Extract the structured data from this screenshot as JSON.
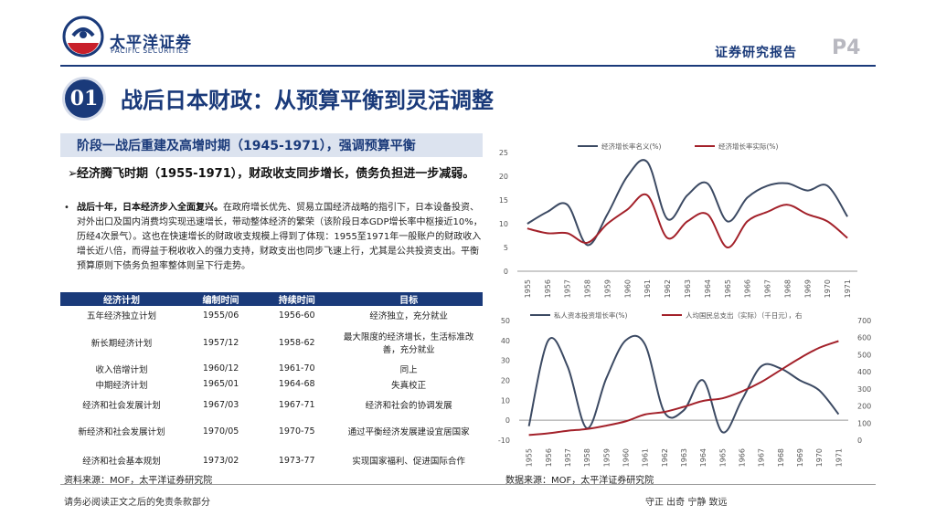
{
  "header": {
    "brand_cn": "太平洋证券",
    "brand_en": "PACIFIC SECURITIES",
    "report_label": "证券研究报告",
    "page_no": "P4"
  },
  "title": {
    "section_no": "01",
    "text": "战后日本财政：从预算平衡到灵活调整"
  },
  "left": {
    "stage_heading": "阶段一战后重建及高增时期（1945-1971），强调预算平衡",
    "bullet1_mark": "➢",
    "bullet1": "经济腾飞时期（1955-1971），财政收支同步增长，债务负担进一步减弱。",
    "bullet2_mark": "•",
    "bullet2_bold": "战后十年，日本经济步入全面复兴。",
    "bullet2_rest": "在政府增长优先、贸易立国经济战略的指引下，日本设备投资、对外出口及国内消费均实现迅速增长，带动整体经济的繁荣（该阶段日本GDP增长率中枢接近10%，历经4次景气）。这也在快速增长的财政收支规模上得到了体现：1955至1971年一般账户的财政收入增长近八倍，而得益于税收收入的强力支持，财政支出也同步飞速上行，尤其是公共投资支出。平衡预算原则下债务负担率整体则呈下行走势。"
  },
  "table": {
    "headers": [
      "经济计划",
      "编制时间",
      "持续时间",
      "目标"
    ],
    "rows": [
      [
        "五年经济独立计划",
        "1955/06",
        "1956-60",
        "经济独立，充分就业"
      ],
      [
        "新长期经济计划",
        "1957/12",
        "1958-62",
        "最大限度的经济增长，生活标准改善，充分就业"
      ],
      [
        "收入倍增计划",
        "1960/12",
        "1961-70",
        "同上"
      ],
      [
        "中期经济计划",
        "1965/01",
        "1964-68",
        "失真校正"
      ],
      [
        "经济和社会发展计划",
        "1967/03",
        "1967-71",
        "经济和社会的协调发展"
      ],
      [
        "新经济和社会发展计划",
        "1970/05",
        "1970-75",
        "通过平衡经济发展建设宜居国家"
      ],
      [
        "经济和社会基本规划",
        "1973/02",
        "1973-77",
        "实现国家福利、促进国际合作"
      ]
    ]
  },
  "source_left": "资料来源：MOF，太平洋证券研究院",
  "source_right": "数据来源：MOF，太平洋证券研究院",
  "footer": {
    "left": "请务必阅读正文之后的免责条款部分",
    "right": "守正 出奇 宁静 致远"
  },
  "colors": {
    "navy": "#1a3a7a",
    "red": "#a3212a",
    "slate": "#3c4a63"
  },
  "chart_data": [
    {
      "type": "line",
      "title": "",
      "x": [
        "1955",
        "1956",
        "1957",
        "1958",
        "1959",
        "1960",
        "1961",
        "1962",
        "1963",
        "1964",
        "1965",
        "1966",
        "1967",
        "1968",
        "1969",
        "1970",
        "1971"
      ],
      "series": [
        {
          "name": "经济增长率名义(%)",
          "color": "#3c4a63",
          "values": [
            10,
            12.5,
            14,
            5.5,
            12,
            20,
            23,
            11,
            16,
            18.5,
            10.5,
            15.5,
            18,
            18.5,
            17,
            18,
            11.5
          ]
        },
        {
          "name": "经济增长率实际(%)",
          "color": "#a3212a",
          "values": [
            9,
            8,
            8,
            6,
            10,
            13,
            16,
            7,
            10.5,
            12,
            5,
            10.5,
            12.5,
            14,
            12,
            10.5,
            7
          ]
        }
      ],
      "ylim": [
        0,
        25
      ],
      "yticks": [
        0,
        5,
        10,
        15,
        20,
        25
      ],
      "legend": "top"
    },
    {
      "type": "line",
      "title": "",
      "x": [
        "1955",
        "1956",
        "1957",
        "1958",
        "1959",
        "1960",
        "1961",
        "1962",
        "1963",
        "1964",
        "1965",
        "1966",
        "1967",
        "1968",
        "1969",
        "1970",
        "1971"
      ],
      "series": [
        {
          "name": "私人资本投资增长率(%)",
          "axis": "left",
          "color": "#3c4a63",
          "values": [
            -3,
            40,
            27,
            -4,
            21,
            40,
            38,
            4,
            5,
            20,
            -6,
            10,
            27,
            26,
            20,
            15,
            3
          ]
        },
        {
          "name": "人均国民总支出（实际）（千日元），右",
          "axis": "right",
          "color": "#a3212a",
          "values": [
            30,
            40,
            55,
            65,
            85,
            110,
            150,
            165,
            195,
            230,
            245,
            285,
            340,
            410,
            480,
            540,
            580
          ]
        }
      ],
      "ylim": [
        -10,
        50
      ],
      "yticks": [
        -10,
        0,
        10,
        20,
        30,
        40,
        50
      ],
      "y2lim": [
        0,
        700
      ],
      "y2ticks": [
        0,
        100,
        200,
        300,
        400,
        500,
        600,
        700
      ],
      "legend": "top"
    }
  ]
}
